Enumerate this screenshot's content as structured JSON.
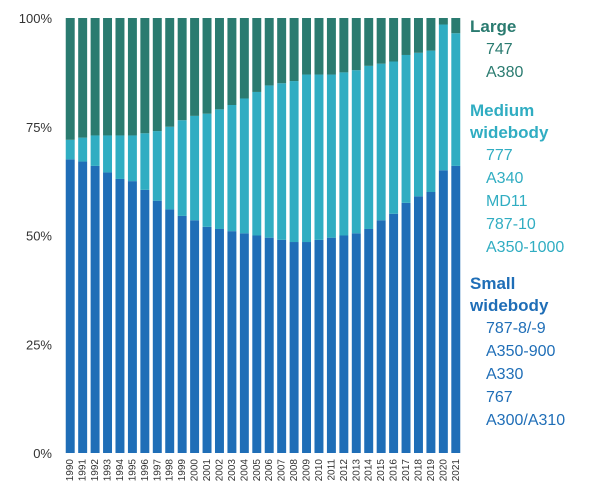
{
  "chart_data": {
    "type": "bar",
    "stacked": true,
    "percent_stacked": true,
    "title": "",
    "xlabel": "",
    "ylabel": "",
    "ylim": [
      0,
      100
    ],
    "yticks": [
      "0%",
      "25%",
      "50%",
      "75%",
      "100%"
    ],
    "grid": false,
    "legend_position": "right",
    "categories": [
      "1990",
      "1991",
      "1992",
      "1993",
      "1994",
      "1995",
      "1996",
      "1997",
      "1998",
      "1999",
      "2000",
      "2001",
      "2002",
      "2003",
      "2004",
      "2005",
      "2006",
      "2007",
      "2008",
      "2009",
      "2010",
      "2011",
      "2012",
      "2013",
      "2014",
      "2015",
      "2016",
      "2017",
      "2018",
      "2019",
      "2020",
      "2021"
    ],
    "series": [
      {
        "name": "Small widebody",
        "color": "#1f6eb7",
        "values": [
          67.5,
          67,
          66,
          64.5,
          63,
          62.5,
          60.5,
          58,
          56,
          54.5,
          53.5,
          52,
          51.5,
          51,
          50.5,
          50,
          49.5,
          49,
          48.5,
          48.5,
          49,
          49.5,
          50,
          50.5,
          51.5,
          53.5,
          55,
          57.5,
          59,
          60,
          65,
          66
        ]
      },
      {
        "name": "Medium widebody",
        "color": "#30adc2",
        "values": [
          4.5,
          5.5,
          7,
          8.5,
          10,
          10.5,
          13,
          16,
          19,
          22,
          24,
          26,
          27.5,
          29,
          31,
          33,
          35,
          36,
          37,
          38.5,
          38,
          37.5,
          37.5,
          37.5,
          37.5,
          36,
          35,
          34,
          33,
          32.5,
          33.5,
          30.5
        ]
      },
      {
        "name": "Large",
        "color": "#2a7b70",
        "values": [
          28,
          27.5,
          27,
          27,
          27,
          27,
          26.5,
          26,
          25,
          23.5,
          22.5,
          22,
          21,
          20,
          18.5,
          17,
          15.5,
          15,
          14.5,
          13,
          13,
          13,
          12.5,
          12,
          11,
          10.5,
          10,
          8.5,
          8,
          7.5,
          1.5,
          3.5
        ]
      }
    ]
  },
  "legend": {
    "groups": [
      {
        "title_lines": [
          "Large"
        ],
        "color": "#2a7b70",
        "items": [
          "747",
          "A380"
        ]
      },
      {
        "title_lines": [
          "Medium",
          "widebody"
        ],
        "color": "#30adc2",
        "items": [
          "777",
          "A340",
          "MD11",
          "787-10",
          "A350-1000"
        ]
      },
      {
        "title_lines": [
          "Small",
          "widebody"
        ],
        "color": "#1f6eb7",
        "items": [
          "787-8/-9",
          "A350-900",
          "A330",
          "767",
          "A300/A310"
        ]
      }
    ]
  }
}
